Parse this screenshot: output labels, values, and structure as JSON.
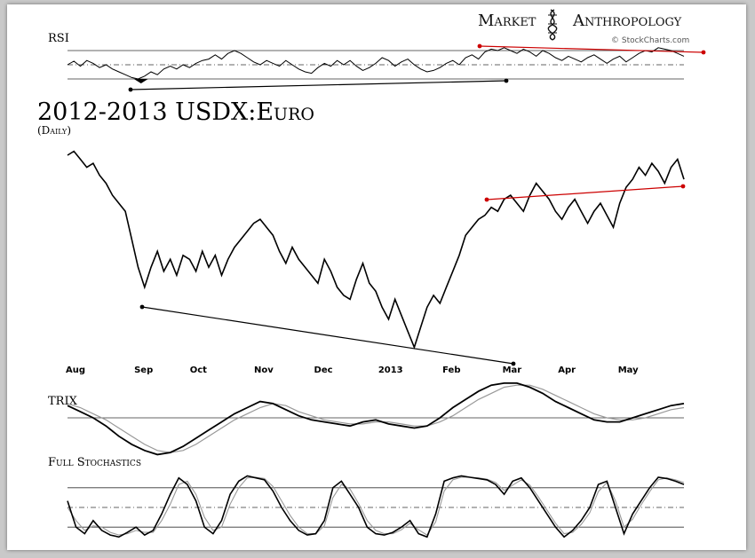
{
  "header": {
    "brand_left": "Market",
    "brand_right": "Anthropology",
    "credit": "© StockCharts.com"
  },
  "chart_data": [
    {
      "type": "line",
      "panel": "rsi",
      "label": "RSI",
      "x": [
        0,
        3,
        6,
        9,
        12,
        15,
        18,
        21,
        24,
        27,
        30,
        33,
        36,
        39,
        42,
        45,
        48,
        51,
        54,
        57,
        60,
        63,
        66,
        69,
        72,
        75,
        78,
        81,
        84,
        87,
        90,
        93,
        96,
        99,
        102,
        105,
        108,
        111,
        114,
        117,
        120,
        123,
        126,
        129,
        132,
        135,
        138,
        141,
        144,
        147,
        150,
        153,
        156,
        159,
        162,
        165,
        168,
        171,
        174,
        177,
        180,
        183,
        186,
        189,
        192,
        195,
        198,
        201,
        204,
        207,
        210,
        213,
        216,
        219,
        222,
        225,
        228,
        231,
        234,
        237,
        240,
        243,
        246,
        249,
        252,
        255,
        258,
        261,
        264,
        267,
        270,
        273,
        276,
        279,
        282,
        285,
        288
      ],
      "values": [
        50,
        55,
        48,
        56,
        52,
        46,
        50,
        44,
        40,
        36,
        32,
        30,
        34,
        40,
        36,
        44,
        48,
        44,
        50,
        46,
        52,
        56,
        58,
        64,
        58,
        66,
        70,
        66,
        60,
        54,
        50,
        56,
        52,
        48,
        56,
        50,
        44,
        40,
        38,
        46,
        52,
        48,
        56,
        50,
        56,
        48,
        42,
        46,
        52,
        60,
        56,
        48,
        54,
        58,
        50,
        44,
        40,
        42,
        46,
        52,
        56,
        50,
        60,
        64,
        58,
        68,
        72,
        70,
        74,
        70,
        66,
        72,
        68,
        62,
        70,
        66,
        60,
        56,
        62,
        58,
        54,
        60,
        64,
        58,
        52,
        58,
        62,
        54,
        60,
        66,
        70,
        68,
        74,
        72,
        70,
        66,
        62
      ],
      "guides": [
        70,
        50,
        30
      ],
      "ylim": [
        20,
        80
      ]
    },
    {
      "type": "line",
      "panel": "price",
      "title": "2012-2013 USDX:Euro",
      "subtitle": "(Daily)",
      "x": [
        0,
        3,
        6,
        9,
        12,
        15,
        18,
        21,
        24,
        27,
        30,
        33,
        36,
        39,
        42,
        45,
        48,
        51,
        54,
        57,
        60,
        63,
        66,
        69,
        72,
        75,
        78,
        81,
        84,
        87,
        90,
        93,
        96,
        99,
        102,
        105,
        108,
        111,
        114,
        117,
        120,
        123,
        126,
        129,
        132,
        135,
        138,
        141,
        144,
        147,
        150,
        153,
        156,
        159,
        162,
        165,
        168,
        171,
        174,
        177,
        180,
        183,
        186,
        189,
        192,
        195,
        198,
        201,
        204,
        207,
        210,
        213,
        216,
        219,
        222,
        225,
        228,
        231,
        234,
        237,
        240,
        243,
        246,
        249,
        252,
        255,
        258,
        261,
        264,
        267,
        270,
        273,
        276,
        279,
        282,
        285,
        288
      ],
      "values": [
        96,
        97,
        95,
        93,
        94,
        91,
        89,
        86,
        84,
        82,
        75,
        68,
        63,
        68,
        72,
        67,
        70,
        66,
        71,
        70,
        67,
        72,
        68,
        71,
        66,
        70,
        73,
        75,
        77,
        79,
        80,
        78,
        76,
        72,
        69,
        73,
        70,
        68,
        66,
        64,
        70,
        67,
        63,
        61,
        60,
        65,
        69,
        64,
        62,
        58,
        55,
        60,
        56,
        52,
        48,
        53,
        58,
        61,
        59,
        63,
        67,
        71,
        76,
        78,
        80,
        81,
        83,
        82,
        85,
        86,
        84,
        82,
        86,
        89,
        87,
        85,
        82,
        80,
        83,
        85,
        82,
        79,
        82,
        84,
        81,
        78,
        84,
        88,
        90,
        93,
        91,
        94,
        92,
        89,
        93,
        95,
        90
      ],
      "ylim": [
        45,
        100
      ],
      "months": [
        "Aug",
        "Sep",
        "Oct",
        "Nov",
        "Dec",
        "2013",
        "Feb",
        "Mar",
        "Apr",
        "May"
      ],
      "month_x": [
        0,
        32,
        58,
        88,
        116,
        146,
        176,
        204,
        230,
        258
      ]
    },
    {
      "type": "line",
      "panel": "trix",
      "label": "TRIX",
      "x": [
        0,
        6,
        12,
        18,
        24,
        30,
        36,
        42,
        48,
        54,
        60,
        66,
        72,
        78,
        84,
        90,
        96,
        102,
        108,
        114,
        120,
        126,
        132,
        138,
        144,
        150,
        156,
        162,
        168,
        174,
        180,
        186,
        192,
        198,
        204,
        210,
        216,
        222,
        228,
        234,
        240,
        246,
        252,
        258,
        264,
        270,
        276,
        282,
        288
      ],
      "series": [
        {
          "values": [
            0.06,
            0.03,
            0.0,
            -0.04,
            -0.09,
            -0.13,
            -0.16,
            -0.18,
            -0.17,
            -0.14,
            -0.1,
            -0.06,
            -0.02,
            0.02,
            0.05,
            0.08,
            0.07,
            0.04,
            0.01,
            -0.01,
            -0.02,
            -0.03,
            -0.04,
            -0.02,
            -0.01,
            -0.03,
            -0.04,
            -0.05,
            -0.04,
            0.0,
            0.05,
            0.09,
            0.13,
            0.16,
            0.17,
            0.17,
            0.15,
            0.12,
            0.08,
            0.05,
            0.02,
            -0.01,
            -0.02,
            -0.02,
            0.0,
            0.02,
            0.04,
            0.06,
            0.07
          ],
          "color": "#000000"
        },
        {
          "values": [
            0.07,
            0.05,
            0.02,
            -0.01,
            -0.05,
            -0.09,
            -0.13,
            -0.16,
            -0.17,
            -0.16,
            -0.13,
            -0.09,
            -0.05,
            -0.01,
            0.02,
            0.05,
            0.07,
            0.06,
            0.03,
            0.01,
            -0.01,
            -0.02,
            -0.03,
            -0.03,
            -0.02,
            -0.02,
            -0.03,
            -0.04,
            -0.04,
            -0.02,
            0.01,
            0.05,
            0.09,
            0.12,
            0.15,
            0.16,
            0.16,
            0.14,
            0.11,
            0.08,
            0.05,
            0.02,
            0.0,
            -0.01,
            -0.01,
            0.0,
            0.02,
            0.04,
            0.05
          ],
          "color": "#999999"
        }
      ],
      "guides": [
        0
      ],
      "ylim": [
        -0.2,
        0.2
      ]
    },
    {
      "type": "line",
      "panel": "stochastics",
      "label": "Full Stochastics",
      "x": [
        0,
        4,
        8,
        12,
        16,
        20,
        24,
        28,
        32,
        36,
        40,
        44,
        48,
        52,
        56,
        60,
        64,
        68,
        72,
        76,
        80,
        84,
        88,
        92,
        96,
        100,
        104,
        108,
        112,
        116,
        120,
        124,
        128,
        132,
        136,
        140,
        144,
        148,
        152,
        156,
        160,
        164,
        168,
        172,
        176,
        180,
        184,
        188,
        192,
        196,
        200,
        204,
        208,
        212,
        216,
        220,
        224,
        228,
        232,
        236,
        240,
        244,
        248,
        252,
        256,
        260,
        264,
        268,
        272,
        276,
        280,
        284,
        288
      ],
      "series": [
        {
          "values": [
            60,
            20,
            10,
            30,
            15,
            8,
            5,
            12,
            20,
            8,
            15,
            40,
            70,
            95,
            85,
            60,
            20,
            10,
            30,
            70,
            90,
            98,
            95,
            92,
            75,
            50,
            30,
            15,
            8,
            10,
            30,
            80,
            90,
            70,
            50,
            20,
            10,
            8,
            12,
            20,
            30,
            10,
            5,
            40,
            90,
            95,
            98,
            96,
            94,
            92,
            85,
            70,
            90,
            95,
            80,
            60,
            40,
            20,
            5,
            15,
            30,
            50,
            85,
            90,
            50,
            10,
            40,
            60,
            80,
            96,
            94,
            90,
            85
          ],
          "color": "#000000"
        },
        {
          "values": [
            50,
            30,
            15,
            22,
            20,
            12,
            8,
            10,
            15,
            12,
            12,
            30,
            55,
            85,
            90,
            70,
            35,
            15,
            20,
            55,
            80,
            95,
            96,
            94,
            82,
            60,
            38,
            20,
            10,
            10,
            22,
            65,
            85,
            78,
            56,
            30,
            15,
            10,
            10,
            16,
            26,
            16,
            8,
            28,
            75,
            92,
            96,
            96,
            95,
            93,
            88,
            76,
            84,
            92,
            84,
            66,
            46,
            26,
            10,
            12,
            24,
            42,
            74,
            88,
            60,
            20,
            32,
            54,
            74,
            92,
            95,
            92,
            88
          ],
          "color": "#999999"
        }
      ],
      "guides": [
        80,
        50,
        20
      ],
      "ylim": [
        0,
        100
      ]
    }
  ],
  "annotations": {
    "black_line_color": "#000000",
    "red_line_color": "#cc0000"
  }
}
